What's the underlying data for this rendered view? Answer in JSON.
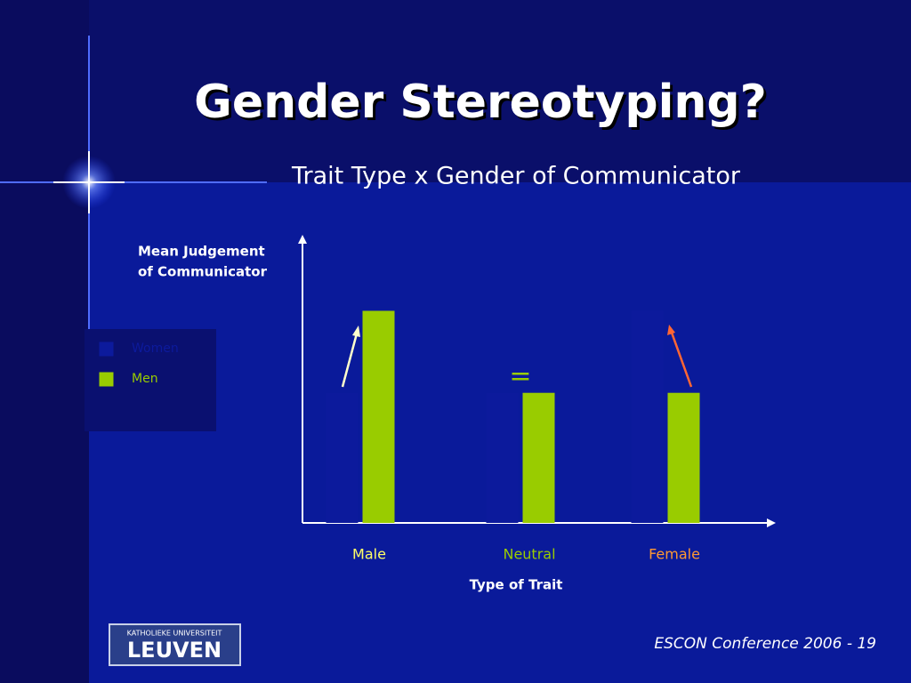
{
  "chart_data": {
    "type": "bar",
    "title": "Gender Stereotyping?",
    "subtitle": "Trait Type x Gender of Communicator",
    "y_label": [
      "Mean Judgement",
      "of Communicator"
    ],
    "x_label": "Type of Trait",
    "categories": [
      "Male",
      "Neutral",
      "Female"
    ],
    "category_colors": [
      "#ffff66",
      "#99cc00",
      "#ff9933"
    ],
    "series": [
      {
        "name": "Women",
        "color": "#0c1a9c",
        "values": [
          46,
          46,
          75
        ]
      },
      {
        "name": "Men",
        "color": "#99cc00",
        "values": [
          75,
          46,
          46
        ]
      }
    ],
    "ylim": [
      0,
      100
    ],
    "annotations": [
      "="
    ]
  },
  "footer": {
    "text": "ESCON Conference 2006 - 19",
    "logo": [
      "KATHOLIEKE UNIVERSITEIT",
      "LEUVEN"
    ]
  }
}
